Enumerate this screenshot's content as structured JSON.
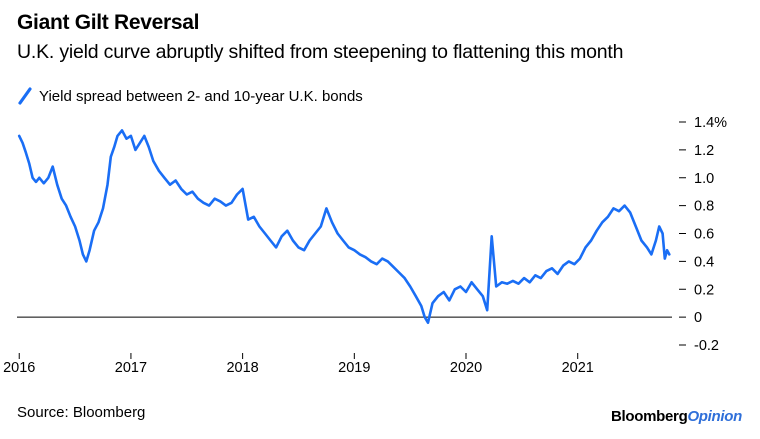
{
  "brand": {
    "name_bold": "Bloomberg",
    "name_accent": "Opinion",
    "accent_color": "#2f6fd9"
  },
  "source": "Source: Bloomberg",
  "chart_data": {
    "type": "line",
    "title": "Giant Gilt Reversal",
    "subtitle": "U.K. yield curve abruptly shifted from steepening to flattening this month",
    "xlabel": "",
    "ylabel": "",
    "xlim": [
      2015.98,
      2021.88
    ],
    "ylim": [
      -0.2,
      1.4
    ],
    "x_ticks": [
      {
        "value": 2016,
        "label": "2016"
      },
      {
        "value": 2017,
        "label": "2017"
      },
      {
        "value": 2018,
        "label": "2018"
      },
      {
        "value": 2019,
        "label": "2019"
      },
      {
        "value": 2020,
        "label": "2020"
      },
      {
        "value": 2021,
        "label": "2021"
      }
    ],
    "y_ticks": [
      {
        "value": 1.4,
        "label": "1.4%"
      },
      {
        "value": 1.2,
        "label": "1.2"
      },
      {
        "value": 1.0,
        "label": "1.0"
      },
      {
        "value": 0.8,
        "label": "0.8"
      },
      {
        "value": 0.6,
        "label": "0.6"
      },
      {
        "value": 0.4,
        "label": "0.4"
      },
      {
        "value": 0.2,
        "label": "0.2"
      },
      {
        "value": 0.0,
        "label": "0"
      },
      {
        "value": -0.2,
        "label": "-0.2"
      }
    ],
    "zero_line": true,
    "grid": false,
    "legend_position": "top-left",
    "series": [
      {
        "name": "Yield spread between 2- and 10-year U.K. bonds",
        "color": "#1a6ef5",
        "x": [
          2016.0,
          2016.03,
          2016.06,
          2016.09,
          2016.12,
          2016.15,
          2016.18,
          2016.22,
          2016.26,
          2016.3,
          2016.34,
          2016.38,
          2016.42,
          2016.46,
          2016.5,
          2016.54,
          2016.57,
          2016.6,
          2016.63,
          2016.67,
          2016.71,
          2016.75,
          2016.79,
          2016.82,
          2016.85,
          2016.88,
          2016.92,
          2016.96,
          2017.0,
          2017.04,
          2017.08,
          2017.12,
          2017.16,
          2017.2,
          2017.25,
          2017.3,
          2017.35,
          2017.4,
          2017.45,
          2017.5,
          2017.55,
          2017.6,
          2017.65,
          2017.7,
          2017.75,
          2017.8,
          2017.85,
          2017.9,
          2017.95,
          2018.0,
          2018.05,
          2018.1,
          2018.15,
          2018.2,
          2018.25,
          2018.3,
          2018.35,
          2018.4,
          2018.45,
          2018.5,
          2018.55,
          2018.6,
          2018.65,
          2018.7,
          2018.75,
          2018.8,
          2018.85,
          2018.9,
          2018.95,
          2019.0,
          2019.05,
          2019.1,
          2019.15,
          2019.2,
          2019.25,
          2019.3,
          2019.35,
          2019.4,
          2019.45,
          2019.5,
          2019.55,
          2019.6,
          2019.63,
          2019.66,
          2019.7,
          2019.75,
          2019.8,
          2019.85,
          2019.9,
          2019.95,
          2020.0,
          2020.05,
          2020.1,
          2020.15,
          2020.17,
          2020.19,
          2020.21,
          2020.23,
          2020.27,
          2020.32,
          2020.37,
          2020.42,
          2020.47,
          2020.52,
          2020.57,
          2020.62,
          2020.67,
          2020.72,
          2020.77,
          2020.82,
          2020.87,
          2020.92,
          2020.97,
          2021.02,
          2021.07,
          2021.12,
          2021.17,
          2021.22,
          2021.27,
          2021.32,
          2021.37,
          2021.42,
          2021.47,
          2021.52,
          2021.57,
          2021.62,
          2021.66,
          2021.7,
          2021.73,
          2021.76,
          2021.78,
          2021.8,
          2021.82
        ],
        "values": [
          1.3,
          1.25,
          1.18,
          1.1,
          1.0,
          0.97,
          1.0,
          0.96,
          1.0,
          1.08,
          0.95,
          0.85,
          0.8,
          0.72,
          0.65,
          0.55,
          0.45,
          0.4,
          0.48,
          0.62,
          0.68,
          0.78,
          0.95,
          1.15,
          1.22,
          1.3,
          1.34,
          1.28,
          1.3,
          1.2,
          1.25,
          1.3,
          1.22,
          1.12,
          1.05,
          1.0,
          0.95,
          0.98,
          0.92,
          0.88,
          0.9,
          0.85,
          0.82,
          0.8,
          0.85,
          0.83,
          0.8,
          0.82,
          0.88,
          0.92,
          0.7,
          0.72,
          0.65,
          0.6,
          0.55,
          0.5,
          0.58,
          0.62,
          0.55,
          0.5,
          0.48,
          0.55,
          0.6,
          0.65,
          0.78,
          0.68,
          0.6,
          0.55,
          0.5,
          0.48,
          0.45,
          0.43,
          0.4,
          0.38,
          0.42,
          0.4,
          0.36,
          0.32,
          0.28,
          0.22,
          0.15,
          0.08,
          0.0,
          -0.04,
          0.1,
          0.15,
          0.18,
          0.12,
          0.2,
          0.22,
          0.18,
          0.25,
          0.2,
          0.15,
          0.1,
          0.05,
          0.32,
          0.58,
          0.22,
          0.25,
          0.24,
          0.26,
          0.24,
          0.28,
          0.25,
          0.3,
          0.28,
          0.33,
          0.35,
          0.31,
          0.37,
          0.4,
          0.38,
          0.42,
          0.5,
          0.55,
          0.62,
          0.68,
          0.72,
          0.78,
          0.76,
          0.8,
          0.75,
          0.65,
          0.55,
          0.5,
          0.45,
          0.55,
          0.65,
          0.6,
          0.42,
          0.48,
          0.45
        ]
      }
    ]
  }
}
